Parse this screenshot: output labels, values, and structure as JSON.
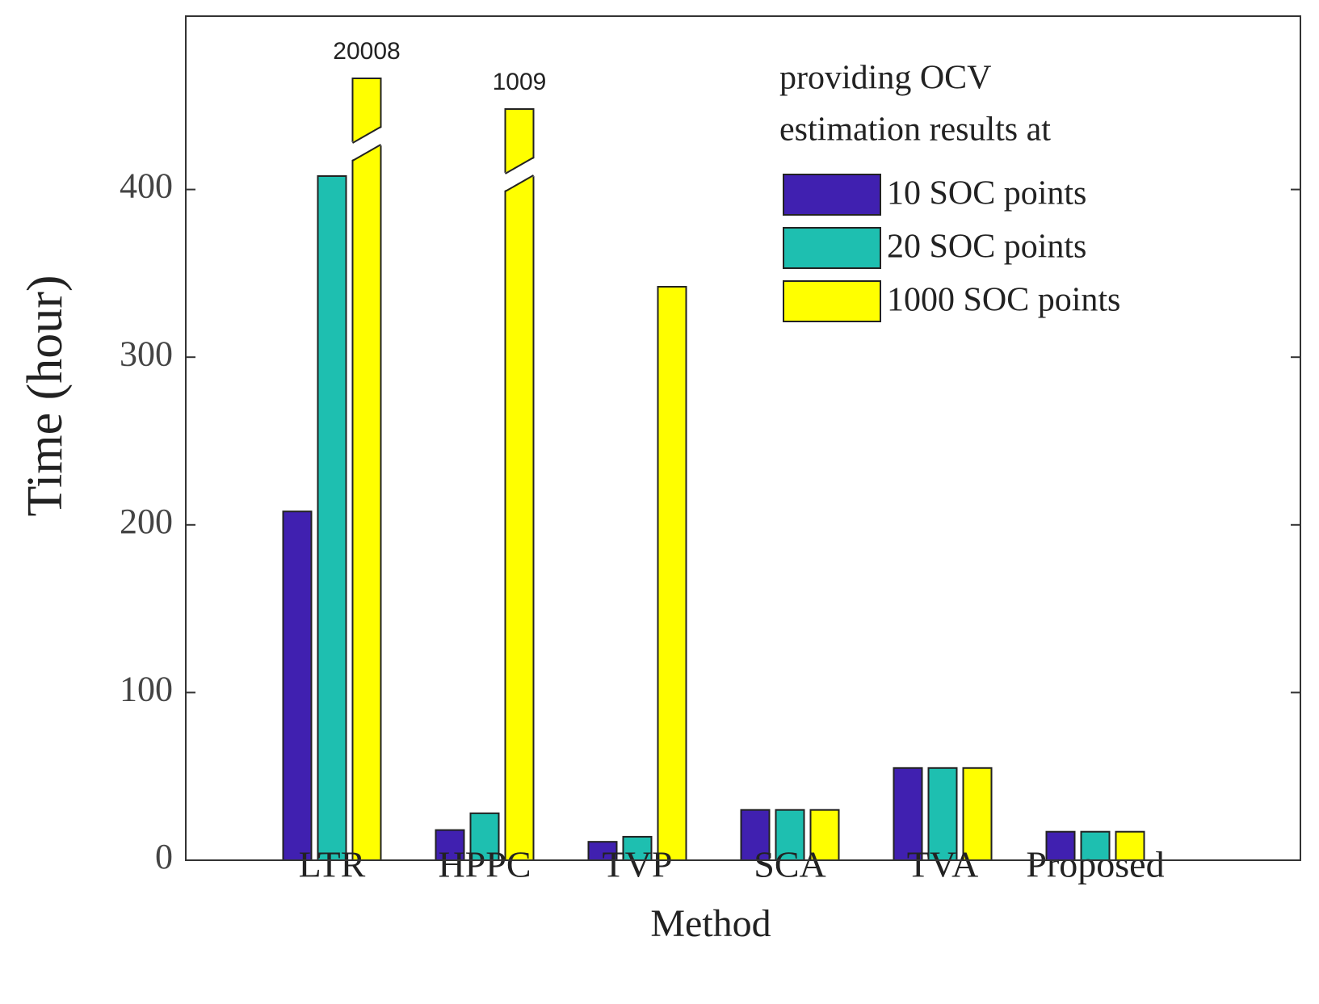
{
  "chart_data": {
    "type": "bar",
    "x_label": "Method",
    "y_label": "Time (hour)",
    "categories": [
      "LTR",
      "HPPC",
      "TVP",
      "SCA",
      "TVA",
      "Proposed"
    ],
    "series": [
      {
        "name": "10 SOC points",
        "color": "#4020b0",
        "values": [
          208,
          18,
          11,
          30,
          55,
          17
        ]
      },
      {
        "name": "20 SOC points",
        "color": "#1ebfb0",
        "values": [
          408,
          28,
          14,
          30,
          55,
          17
        ]
      },
      {
        "name": "1000 SOC points",
        "color": "#ffff00",
        "values": [
          20008,
          1009,
          342,
          30,
          55,
          17
        ],
        "value_labels": [
          "20008",
          "1009",
          null,
          null,
          null,
          null
        ]
      }
    ],
    "legend_title": [
      "providing OCV",
      "estimation results at"
    ],
    "legend": "upper right",
    "ylim": [
      0,
      500
    ],
    "yticks": [
      0,
      100,
      200,
      300,
      400
    ]
  }
}
